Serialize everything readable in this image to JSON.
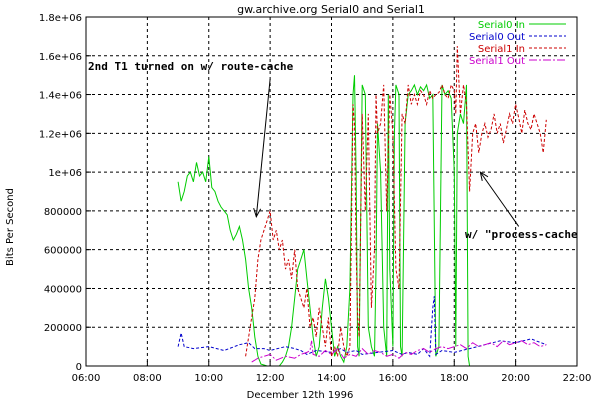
{
  "chart_data": {
    "type": "line",
    "title": "gw.archive.org Serial0 and Serial1",
    "xlabel": "December 12th 1996",
    "ylabel": "Bits Per Second",
    "xlim": [
      6,
      22
    ],
    "ylim": [
      0,
      1800000
    ],
    "x_unit": "hour of day",
    "x_ticks": [
      {
        "value": 6,
        "label": "06:00"
      },
      {
        "value": 8,
        "label": "08:00"
      },
      {
        "value": 10,
        "label": "10:00"
      },
      {
        "value": 12,
        "label": "12:00"
      },
      {
        "value": 14,
        "label": "14:00"
      },
      {
        "value": 16,
        "label": "16:00"
      },
      {
        "value": 18,
        "label": "18:00"
      },
      {
        "value": 20,
        "label": "20:00"
      },
      {
        "value": 22,
        "label": "22:00"
      }
    ],
    "y_ticks": [
      {
        "value": 0,
        "label": "0"
      },
      {
        "value": 200000,
        "label": "200000"
      },
      {
        "value": 400000,
        "label": "400000"
      },
      {
        "value": 600000,
        "label": "600000"
      },
      {
        "value": 800000,
        "label": "800000"
      },
      {
        "value": 1000000,
        "label": "1e+06"
      },
      {
        "value": 1200000,
        "label": "1.2e+06"
      },
      {
        "value": 1400000,
        "label": "1.4e+06"
      },
      {
        "value": 1600000,
        "label": "1.6e+06"
      },
      {
        "value": 1800000,
        "label": "1.8e+06"
      }
    ],
    "grid": true,
    "legend_position": "top-right",
    "series": [
      {
        "name": "Serial0 In",
        "color": "#00cc00",
        "dash": "solid",
        "x": [
          9.0,
          9.1,
          9.2,
          9.3,
          9.4,
          9.5,
          9.6,
          9.7,
          9.8,
          9.9,
          10.0,
          10.1,
          10.2,
          10.3,
          10.4,
          10.5,
          10.6,
          10.7,
          10.8,
          10.9,
          11.0,
          11.1,
          11.2,
          11.3,
          11.4,
          11.5,
          11.6,
          11.7,
          11.8,
          11.9,
          12.0,
          12.1,
          12.2,
          12.3,
          12.4,
          12.5,
          12.6,
          12.7,
          12.8,
          12.9,
          13.0,
          13.1,
          13.2,
          13.3,
          13.4,
          13.5,
          13.6,
          13.7,
          13.8,
          13.9,
          14.0,
          14.1,
          14.2,
          14.3,
          14.4,
          14.5,
          14.6,
          14.7,
          14.75,
          14.8,
          14.85,
          14.9,
          15.0,
          15.1,
          15.2,
          15.3,
          15.4,
          15.45,
          15.5,
          15.6,
          15.7,
          15.8,
          15.85,
          15.9,
          16.0,
          16.05,
          16.1,
          16.2,
          16.25,
          16.3,
          16.4,
          16.5,
          16.6,
          16.7,
          16.8,
          16.9,
          17.0,
          17.1,
          17.2,
          17.3,
          17.4,
          17.5,
          17.6,
          17.7,
          17.8,
          17.9,
          18.0,
          18.05,
          18.1,
          18.2,
          18.3,
          18.4,
          18.45,
          18.5
        ],
        "y": [
          950000,
          850000,
          900000,
          980000,
          1000000,
          950000,
          1050000,
          980000,
          1000000,
          950000,
          1080000,
          920000,
          900000,
          850000,
          820000,
          800000,
          780000,
          700000,
          650000,
          680000,
          720000,
          650000,
          550000,
          400000,
          300000,
          150000,
          50000,
          10000,
          5000,
          0,
          0,
          0,
          0,
          0,
          20000,
          50000,
          100000,
          200000,
          350000,
          500000,
          550000,
          600000,
          450000,
          300000,
          150000,
          50000,
          100000,
          300000,
          450000,
          350000,
          200000,
          50000,
          100000,
          50000,
          20000,
          100000,
          400000,
          1400000,
          1500000,
          1000000,
          100000,
          50000,
          1450000,
          1400000,
          200000,
          100000,
          50000,
          500000,
          1250000,
          1000000,
          200000,
          50000,
          1400000,
          500000,
          100000,
          1200000,
          1450000,
          1400000,
          100000,
          50000,
          1250000,
          1400000,
          1420000,
          1450000,
          1400000,
          1440000,
          1420000,
          1450000,
          1380000,
          1400000,
          50000,
          100000,
          1450000,
          1400000,
          1420000,
          1380000,
          1000000,
          100000,
          1200000,
          1300000,
          1250000,
          1450000,
          50000,
          0
        ]
      },
      {
        "name": "Serial0 Out",
        "color": "#0000cc",
        "dash": "3,2",
        "x": [
          9.0,
          9.1,
          9.2,
          9.5,
          10.0,
          10.5,
          11.0,
          11.3,
          11.5,
          11.8,
          12.0,
          12.5,
          12.8,
          13.0,
          13.2,
          13.5,
          14.0,
          14.3,
          14.5,
          14.8,
          15.0,
          15.5,
          16.0,
          16.3,
          16.5,
          16.8,
          17.0,
          17.2,
          17.3,
          17.35,
          17.4,
          17.6,
          18.0,
          18.5,
          19.0,
          19.5,
          20.0,
          20.5,
          21.0
        ],
        "y": [
          100000,
          170000,
          100000,
          90000,
          100000,
          80000,
          110000,
          120000,
          90000,
          90000,
          80000,
          100000,
          90000,
          80000,
          60000,
          80000,
          70000,
          90000,
          70000,
          80000,
          60000,
          70000,
          80000,
          60000,
          70000,
          60000,
          90000,
          50000,
          300000,
          360000,
          60000,
          80000,
          70000,
          90000,
          110000,
          130000,
          120000,
          140000,
          110000
        ]
      },
      {
        "name": "Serial1 In",
        "color": "#cc0000",
        "dash": "3,2",
        "x": [
          11.2,
          11.4,
          11.5,
          11.6,
          11.7,
          11.8,
          11.9,
          12.0,
          12.1,
          12.2,
          12.3,
          12.4,
          12.5,
          12.6,
          12.7,
          12.8,
          12.9,
          13.0,
          13.1,
          13.2,
          13.3,
          13.4,
          13.5,
          13.6,
          13.7,
          13.8,
          13.9,
          14.0,
          14.1,
          14.2,
          14.3,
          14.4,
          14.5,
          14.6,
          14.7,
          14.75,
          14.8,
          14.85,
          14.9,
          15.0,
          15.1,
          15.2,
          15.3,
          15.4,
          15.45,
          15.5,
          15.6,
          15.7,
          15.8,
          15.9,
          16.0,
          16.1,
          16.2,
          16.3,
          16.4,
          16.5,
          16.6,
          16.7,
          16.8,
          16.9,
          17.0,
          17.1,
          17.2,
          17.3,
          17.4,
          17.5,
          17.6,
          17.7,
          17.8,
          17.9,
          18.0,
          18.05,
          18.1,
          18.2,
          18.3,
          18.4,
          18.5,
          18.6,
          18.7,
          18.8,
          18.9,
          19.0,
          19.1,
          19.2,
          19.3,
          19.4,
          19.5,
          19.6,
          19.7,
          19.8,
          19.9,
          20.0,
          20.1,
          20.2,
          20.3,
          20.4,
          20.5,
          20.6,
          20.7,
          20.8,
          20.9,
          21.0
        ],
        "y": [
          50000,
          250000,
          350000,
          550000,
          650000,
          700000,
          750000,
          800000,
          650000,
          700000,
          600000,
          650000,
          500000,
          550000,
          450000,
          600000,
          400000,
          350000,
          300000,
          400000,
          200000,
          250000,
          150000,
          300000,
          200000,
          100000,
          250000,
          50000,
          100000,
          50000,
          200000,
          100000,
          50000,
          100000,
          1350000,
          1250000,
          600000,
          250000,
          150000,
          1300000,
          800000,
          1300000,
          300000,
          600000,
          1400000,
          1200000,
          1250000,
          1450000,
          800000,
          1400000,
          1200000,
          500000,
          400000,
          1300000,
          1250000,
          1450000,
          1350000,
          1400000,
          1350000,
          1420000,
          1400000,
          1350000,
          1420000,
          1380000,
          1400000,
          1410000,
          1450000,
          1400000,
          1380000,
          1450000,
          1420000,
          1300000,
          1650000,
          1300000,
          1450000,
          1350000,
          900000,
          1200000,
          1250000,
          1100000,
          1200000,
          1250000,
          1180000,
          1220000,
          1300000,
          1200000,
          1250000,
          1150000,
          1220000,
          1300000,
          1250000,
          1350000,
          1280000,
          1200000,
          1320000,
          1250000,
          1220000,
          1300000,
          1250000,
          1200000,
          1100000,
          1270000
        ]
      },
      {
        "name": "Serial1 Out",
        "color": "#cc00cc",
        "dash": "8,2,2,2",
        "x": [
          11.4,
          11.6,
          11.8,
          12.0,
          12.2,
          12.5,
          12.8,
          13.0,
          13.2,
          13.3,
          13.35,
          13.4,
          13.6,
          13.8,
          14.0,
          14.2,
          14.4,
          14.6,
          14.8,
          15.0,
          15.2,
          15.4,
          15.6,
          15.8,
          16.0,
          16.2,
          16.4,
          16.6,
          16.8,
          17.0,
          17.2,
          17.4,
          17.6,
          17.8,
          18.0,
          18.2,
          18.4,
          18.6,
          18.8,
          19.0,
          19.2,
          19.4,
          19.6,
          19.8,
          20.0,
          20.2,
          20.4,
          20.6,
          20.8,
          21.0
        ],
        "y": [
          20000,
          40000,
          50000,
          60000,
          30000,
          50000,
          40000,
          60000,
          70000,
          80000,
          130000,
          60000,
          50000,
          80000,
          60000,
          90000,
          40000,
          60000,
          50000,
          90000,
          60000,
          80000,
          70000,
          50000,
          60000,
          40000,
          70000,
          60000,
          80000,
          90000,
          70000,
          90000,
          100000,
          90000,
          100000,
          110000,
          90000,
          120000,
          100000,
          110000,
          120000,
          100000,
          130000,
          110000,
          120000,
          130000,
          110000,
          120000,
          100000,
          110000
        ]
      }
    ],
    "annotations": [
      {
        "text": "2nd T1 turned on w/ route-cache",
        "arrow_from": [
          12.0,
          1480000
        ],
        "arrow_to": [
          11.55,
          770000
        ]
      },
      {
        "text": "w/ \"process-cache",
        "arrow_from": [
          20.1,
          720000
        ],
        "arrow_to": [
          18.85,
          1000000
        ]
      }
    ]
  }
}
